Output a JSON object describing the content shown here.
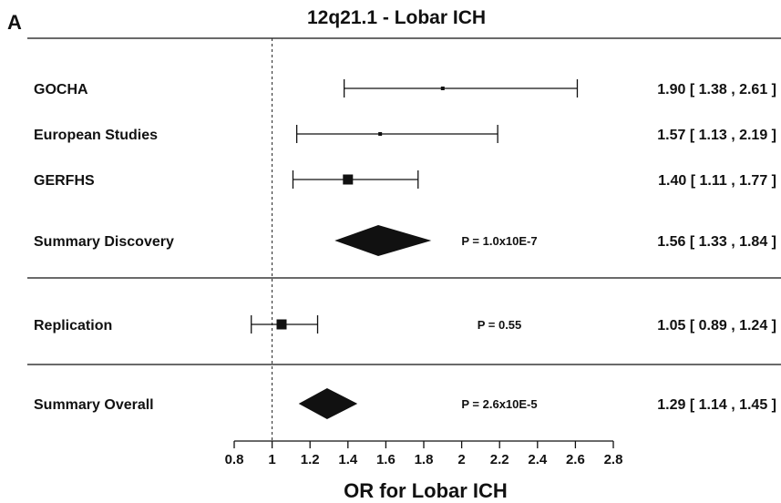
{
  "panel_letter": "A",
  "chart_data": {
    "type": "forest",
    "title": "12q21.1  - Lobar ICH",
    "xlabel": "OR for Lobar ICH",
    "xlim": [
      0.8,
      2.8
    ],
    "xticks": [
      0.8,
      1,
      1.2,
      1.4,
      1.6,
      1.8,
      2,
      2.2,
      2.4,
      2.6,
      2.8
    ],
    "xtick_labels": [
      "0.8",
      "1",
      "1.2",
      "1.4",
      "1.6",
      "1.8",
      "2",
      "2.2",
      "2.4",
      "2.6",
      "2.8"
    ],
    "reference_line": 1,
    "rows": [
      {
        "label": "GOCHA",
        "kind": "study",
        "or": 1.9,
        "lo": 1.38,
        "hi": 2.61,
        "weight": 1,
        "ci_text": "1.90 [ 1.38 , 2.61 ]",
        "p_text": ""
      },
      {
        "label": "European Studies",
        "kind": "study",
        "or": 1.57,
        "lo": 1.13,
        "hi": 2.19,
        "weight": 1,
        "ci_text": "1.57 [ 1.13 , 2.19 ]",
        "p_text": ""
      },
      {
        "label": "GERFHS",
        "kind": "study",
        "or": 1.4,
        "lo": 1.11,
        "hi": 1.77,
        "weight": 3,
        "ci_text": "1.40 [ 1.11 , 1.77 ]",
        "p_text": ""
      },
      {
        "label": "Summary Discovery",
        "kind": "summary",
        "or": 1.56,
        "lo": 1.33,
        "hi": 1.84,
        "ci_text": "1.56 [ 1.33 , 1.84 ]",
        "p_text": "P = 1.0x10E-7"
      },
      {
        "label": "Replication",
        "kind": "study",
        "or": 1.05,
        "lo": 0.89,
        "hi": 1.24,
        "weight": 3,
        "ci_text": "1.05 [ 0.89 , 1.24 ]",
        "p_text": "P = 0.55"
      },
      {
        "label": "Summary Overall",
        "kind": "summary",
        "or": 1.29,
        "lo": 1.14,
        "hi": 1.45,
        "ci_text": "1.29 [ 1.14 , 1.45 ]",
        "p_text": "P = 2.6x10E-5"
      }
    ]
  }
}
